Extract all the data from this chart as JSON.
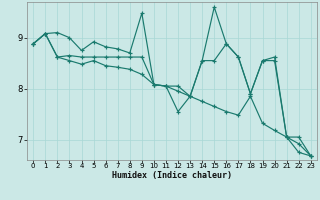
{
  "xlabel": "Humidex (Indice chaleur)",
  "bg_color": "#cbe8e6",
  "grid_color": "#a8d8d5",
  "line_color": "#1a7a6e",
  "spine_color": "#888888",
  "xlim": [
    -0.5,
    23.5
  ],
  "ylim": [
    6.6,
    9.7
  ],
  "yticks": [
    7,
    8,
    9
  ],
  "xticks": [
    0,
    1,
    2,
    3,
    4,
    5,
    6,
    7,
    8,
    9,
    10,
    11,
    12,
    13,
    14,
    15,
    16,
    17,
    18,
    19,
    20,
    21,
    22,
    23
  ],
  "series1_x": [
    0,
    1,
    2,
    3,
    4,
    5,
    6,
    7,
    8,
    9,
    10,
    11,
    12,
    13,
    14,
    15,
    16,
    17,
    18,
    19,
    20,
    21,
    22,
    23
  ],
  "series1_y": [
    8.88,
    9.08,
    9.1,
    9.0,
    8.75,
    8.92,
    8.82,
    8.78,
    8.7,
    9.48,
    8.08,
    8.05,
    7.55,
    7.85,
    8.55,
    9.6,
    8.88,
    8.62,
    7.9,
    8.55,
    8.55,
    7.05,
    6.75,
    6.68
  ],
  "series2_x": [
    0,
    1,
    2,
    3,
    4,
    5,
    6,
    7,
    8,
    9,
    10,
    11,
    12,
    13,
    14,
    15,
    16,
    17,
    18,
    19,
    20,
    21,
    22,
    23
  ],
  "series2_y": [
    8.88,
    9.08,
    8.62,
    8.65,
    8.62,
    8.62,
    8.62,
    8.62,
    8.62,
    8.62,
    8.08,
    8.05,
    8.05,
    7.85,
    8.55,
    8.55,
    8.88,
    8.62,
    7.9,
    8.55,
    8.62,
    7.05,
    7.05,
    6.68
  ],
  "series3_x": [
    0,
    1,
    2,
    3,
    4,
    5,
    6,
    7,
    8,
    9,
    10,
    11,
    12,
    13,
    14,
    15,
    16,
    17,
    18,
    19,
    20,
    21,
    22,
    23
  ],
  "series3_y": [
    8.88,
    9.08,
    8.62,
    8.55,
    8.48,
    8.55,
    8.45,
    8.42,
    8.38,
    8.28,
    8.08,
    8.05,
    7.95,
    7.85,
    7.75,
    7.65,
    7.55,
    7.48,
    7.85,
    7.32,
    7.18,
    7.05,
    6.92,
    6.68
  ]
}
